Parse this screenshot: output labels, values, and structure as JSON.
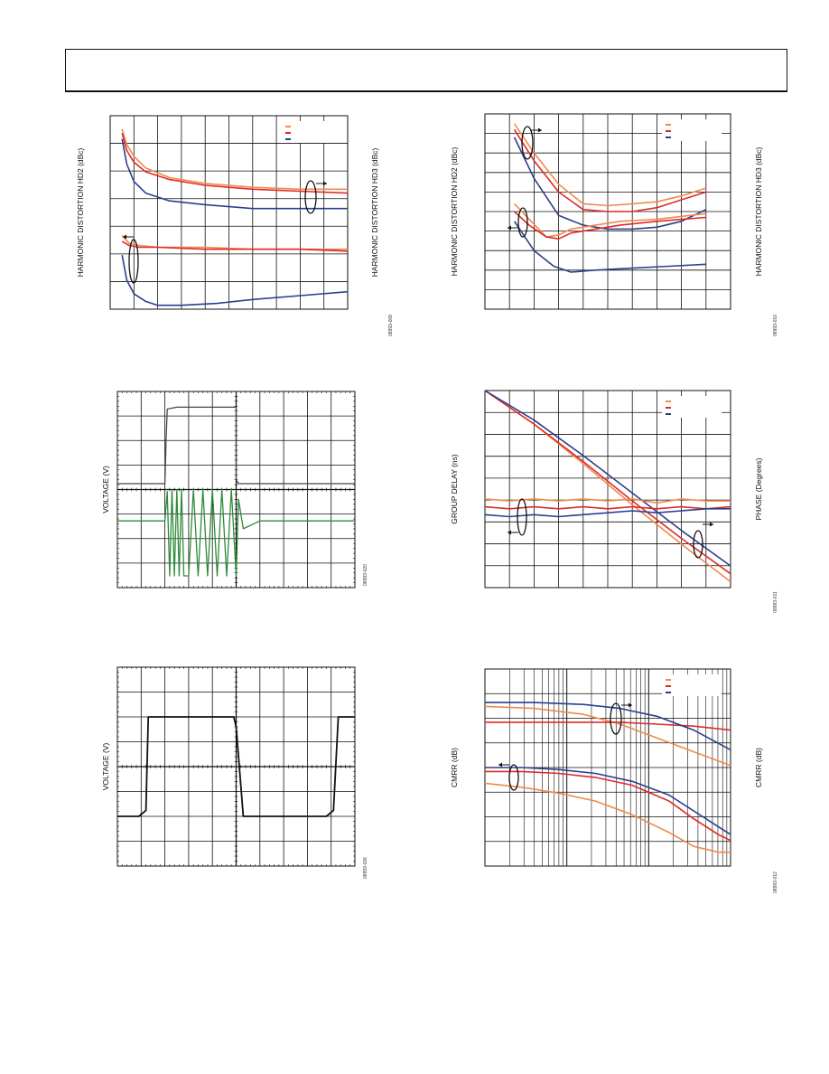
{
  "page": {},
  "chart_data": [
    {
      "id": "c1",
      "type": "line",
      "ylabel_left": "HARMONIC DISTORTION HD2 (dBc)",
      "ylabel_right": "HARMONIC DISTORTION HD3 (dBc)",
      "fig_id": "08993-009",
      "grid": true,
      "xlim": [
        0,
        1
      ],
      "ylim": [
        0,
        1
      ],
      "series": [
        {
          "color": "#f08a4b",
          "x": [
            0.05,
            0.07,
            0.1,
            0.15,
            0.25,
            0.4,
            0.6,
            0.8,
            1.0
          ],
          "y": [
            0.07,
            0.15,
            0.21,
            0.27,
            0.32,
            0.35,
            0.37,
            0.38,
            0.38
          ]
        },
        {
          "color": "#e02a2a",
          "x": [
            0.05,
            0.07,
            0.1,
            0.15,
            0.25,
            0.4,
            0.6,
            0.8,
            1.0
          ],
          "y": [
            0.09,
            0.18,
            0.24,
            0.29,
            0.33,
            0.36,
            0.38,
            0.39,
            0.4
          ]
        },
        {
          "color": "#2b3f8c",
          "x": [
            0.05,
            0.07,
            0.1,
            0.15,
            0.25,
            0.4,
            0.6,
            0.8,
            1.0
          ],
          "y": [
            0.12,
            0.25,
            0.34,
            0.4,
            0.44,
            0.46,
            0.48,
            0.48,
            0.48
          ]
        },
        {
          "color": "#f08a4b",
          "x": [
            0.05,
            0.08,
            0.12,
            0.2,
            0.4,
            0.6,
            0.8,
            1.0
          ],
          "y": [
            0.62,
            0.66,
            0.67,
            0.68,
            0.68,
            0.69,
            0.69,
            0.69
          ]
        },
        {
          "color": "#e02a2a",
          "x": [
            0.05,
            0.08,
            0.12,
            0.2,
            0.4,
            0.6,
            0.8,
            1.0
          ],
          "y": [
            0.65,
            0.67,
            0.68,
            0.68,
            0.69,
            0.69,
            0.69,
            0.7
          ]
        },
        {
          "color": "#2b3f8c",
          "x": [
            0.05,
            0.07,
            0.1,
            0.15,
            0.2,
            0.3,
            0.45,
            0.6,
            0.8,
            1.0
          ],
          "y": [
            0.72,
            0.85,
            0.92,
            0.96,
            0.98,
            0.98,
            0.97,
            0.95,
            0.93,
            0.91
          ]
        }
      ]
    },
    {
      "id": "c2",
      "type": "line",
      "ylabel_left": "HARMONIC DISTORTION HD2 (dBc)",
      "ylabel_right": "HARMONIC DISTORTION HD3 (dBc)",
      "fig_id": "08993-010",
      "grid": true,
      "xlim": [
        0,
        1
      ],
      "ylim": [
        0,
        1
      ],
      "series": [
        {
          "color": "#f08a4b",
          "x": [
            0.12,
            0.2,
            0.3,
            0.4,
            0.5,
            0.6,
            0.7,
            0.8,
            0.9
          ],
          "y": [
            0.05,
            0.2,
            0.36,
            0.46,
            0.47,
            0.46,
            0.45,
            0.42,
            0.38
          ]
        },
        {
          "color": "#e02a2a",
          "x": [
            0.12,
            0.2,
            0.3,
            0.4,
            0.5,
            0.6,
            0.7,
            0.8,
            0.9
          ],
          "y": [
            0.08,
            0.24,
            0.4,
            0.49,
            0.5,
            0.5,
            0.48,
            0.44,
            0.4
          ]
        },
        {
          "color": "#2b3f8c",
          "x": [
            0.12,
            0.2,
            0.3,
            0.4,
            0.5,
            0.6,
            0.7,
            0.8,
            0.9
          ],
          "y": [
            0.12,
            0.33,
            0.52,
            0.57,
            0.59,
            0.59,
            0.58,
            0.55,
            0.49
          ]
        },
        {
          "color": "#f08a4b",
          "x": [
            0.12,
            0.18,
            0.25,
            0.3,
            0.35,
            0.45,
            0.55,
            0.7,
            0.9
          ],
          "y": [
            0.46,
            0.54,
            0.63,
            0.62,
            0.59,
            0.57,
            0.55,
            0.54,
            0.51
          ]
        },
        {
          "color": "#e02a2a",
          "x": [
            0.12,
            0.18,
            0.25,
            0.3,
            0.35,
            0.45,
            0.55,
            0.7,
            0.9
          ],
          "y": [
            0.5,
            0.57,
            0.63,
            0.64,
            0.61,
            0.59,
            0.57,
            0.55,
            0.53
          ]
        },
        {
          "color": "#2b3f8c",
          "x": [
            0.12,
            0.2,
            0.28,
            0.35,
            0.45,
            0.6,
            0.75,
            0.9
          ],
          "y": [
            0.55,
            0.7,
            0.78,
            0.81,
            0.8,
            0.79,
            0.78,
            0.77
          ]
        }
      ]
    },
    {
      "id": "c3",
      "type": "line",
      "ylabel_left": "VOLTAGE (V)",
      "fig_id": "08993-020",
      "grid": true,
      "xlim": [
        0,
        1
      ],
      "ylim": [
        0,
        1
      ],
      "series": [
        {
          "color": "#444444",
          "x": [
            0.0,
            0.2,
            0.205,
            0.21,
            0.25,
            0.5,
            0.5,
            0.51,
            0.6,
            1.0
          ],
          "y": [
            0.47,
            0.47,
            0.25,
            0.09,
            0.08,
            0.08,
            0.45,
            0.47,
            0.47,
            0.47
          ]
        },
        {
          "color": "#2e8b3a",
          "x": [
            0.0,
            0.2,
            0.21,
            0.22,
            0.23,
            0.24,
            0.25,
            0.26,
            0.27,
            0.28,
            0.3,
            0.32,
            0.34,
            0.36,
            0.38,
            0.4,
            0.42,
            0.44,
            0.46,
            0.48,
            0.5,
            0.51,
            0.53,
            0.6,
            0.7,
            0.8,
            0.9,
            1.0
          ],
          "y": [
            0.66,
            0.66,
            0.51,
            0.94,
            0.5,
            0.94,
            0.5,
            0.94,
            0.5,
            0.94,
            0.94,
            0.5,
            0.94,
            0.5,
            0.94,
            0.5,
            0.94,
            0.5,
            0.94,
            0.5,
            0.94,
            0.55,
            0.7,
            0.66,
            0.66,
            0.66,
            0.66,
            0.66
          ]
        }
      ]
    },
    {
      "id": "c4",
      "type": "line",
      "ylabel_left": "GROUP DELAY (ns)",
      "ylabel_right": "PHASE (Degrees)",
      "fig_id": "08993-011",
      "grid": true,
      "xlim": [
        0,
        1
      ],
      "ylim": [
        0,
        1
      ],
      "series": [
        {
          "color": "#f08a4b",
          "x": [
            0.0,
            0.2,
            0.4,
            0.6,
            0.8,
            1.0
          ],
          "y": [
            0.0,
            0.17,
            0.37,
            0.58,
            0.78,
            0.97
          ]
        },
        {
          "color": "#e02a2a",
          "x": [
            0.0,
            0.2,
            0.4,
            0.6,
            0.8,
            1.0
          ],
          "y": [
            0.0,
            0.17,
            0.36,
            0.56,
            0.75,
            0.93
          ]
        },
        {
          "color": "#2b3f8c",
          "x": [
            0.0,
            0.2,
            0.4,
            0.6,
            0.8,
            1.0
          ],
          "y": [
            0.0,
            0.15,
            0.33,
            0.52,
            0.71,
            0.89
          ]
        },
        {
          "color": "#f08a4b",
          "x": [
            0.0,
            0.1,
            0.2,
            0.3,
            0.4,
            0.5,
            0.6,
            0.7,
            0.8,
            0.9,
            1.0
          ],
          "y": [
            0.55,
            0.56,
            0.55,
            0.56,
            0.55,
            0.56,
            0.55,
            0.57,
            0.55,
            0.56,
            0.56
          ]
        },
        {
          "color": "#e02a2a",
          "x": [
            0.0,
            0.1,
            0.2,
            0.3,
            0.4,
            0.5,
            0.6,
            0.7,
            0.8,
            0.9,
            1.0
          ],
          "y": [
            0.59,
            0.6,
            0.59,
            0.6,
            0.59,
            0.6,
            0.59,
            0.6,
            0.59,
            0.6,
            0.59
          ]
        },
        {
          "color": "#2b3f8c",
          "x": [
            0.0,
            0.1,
            0.2,
            0.3,
            0.4,
            0.5,
            0.6,
            0.7,
            0.8,
            0.9,
            1.0
          ],
          "y": [
            0.63,
            0.64,
            0.63,
            0.64,
            0.63,
            0.62,
            0.61,
            0.62,
            0.61,
            0.6,
            0.6
          ]
        }
      ]
    },
    {
      "id": "c5",
      "type": "line",
      "ylabel_left": "VOLTAGE (V)",
      "fig_id": "08993-026",
      "grid": true,
      "xlim": [
        0,
        1
      ],
      "ylim": [
        0,
        1
      ],
      "series": [
        {
          "color": "#111111",
          "x": [
            0.0,
            0.09,
            0.12,
            0.13,
            0.49,
            0.5,
            0.53,
            0.54,
            0.88,
            0.91,
            0.93,
            1.0
          ],
          "y": [
            0.75,
            0.75,
            0.72,
            0.25,
            0.25,
            0.3,
            0.75,
            0.75,
            0.75,
            0.72,
            0.25,
            0.25
          ]
        }
      ]
    },
    {
      "id": "c6",
      "type": "line",
      "ylabel_left": "CMRR (dB)",
      "ylabel_right": "CMRR (dB)",
      "fig_id": "08993-012",
      "grid": true,
      "xlim": [
        0,
        1
      ],
      "ylim": [
        0,
        1
      ],
      "series": [
        {
          "color": "#f08a4b",
          "x": [
            0.0,
            0.2,
            0.4,
            0.55,
            0.7,
            0.85,
            1.0
          ],
          "y": [
            0.19,
            0.2,
            0.23,
            0.28,
            0.35,
            0.42,
            0.49
          ]
        },
        {
          "color": "#e02a2a",
          "x": [
            0.0,
            0.2,
            0.4,
            0.55,
            0.7,
            0.85,
            1.0
          ],
          "y": [
            0.27,
            0.27,
            0.27,
            0.27,
            0.28,
            0.29,
            0.31
          ]
        },
        {
          "color": "#2b3f8c",
          "x": [
            0.0,
            0.2,
            0.4,
            0.55,
            0.7,
            0.85,
            1.0
          ],
          "y": [
            0.17,
            0.17,
            0.18,
            0.2,
            0.24,
            0.31,
            0.41
          ]
        },
        {
          "color": "#f08a4b",
          "x": [
            0.0,
            0.15,
            0.3,
            0.45,
            0.6,
            0.75,
            0.85,
            0.95,
            1.0
          ],
          "y": [
            0.58,
            0.6,
            0.63,
            0.67,
            0.74,
            0.83,
            0.9,
            0.93,
            0.93
          ]
        },
        {
          "color": "#e02a2a",
          "x": [
            0.0,
            0.15,
            0.3,
            0.45,
            0.6,
            0.75,
            0.85,
            0.95,
            1.0
          ],
          "y": [
            0.52,
            0.52,
            0.53,
            0.55,
            0.59,
            0.67,
            0.76,
            0.84,
            0.87
          ]
        },
        {
          "color": "#2b3f8c",
          "x": [
            0.0,
            0.15,
            0.3,
            0.45,
            0.6,
            0.75,
            0.85,
            0.95,
            1.0
          ],
          "y": [
            0.5,
            0.5,
            0.51,
            0.53,
            0.57,
            0.64,
            0.72,
            0.8,
            0.84
          ]
        }
      ]
    }
  ]
}
